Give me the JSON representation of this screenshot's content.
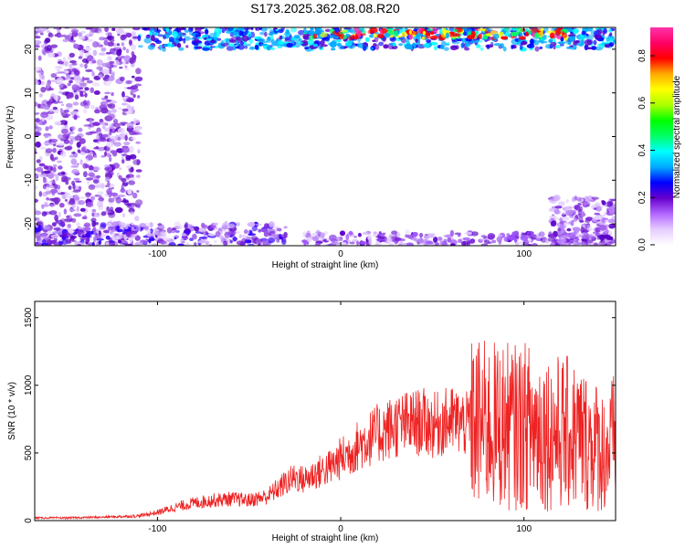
{
  "figure": {
    "title": "S173.2025.362.08.08.R20"
  },
  "chart_data": [
    {
      "type": "heatmap",
      "xlabel": "Height of straight line (km)",
      "ylabel": "Frequency (Hz)",
      "xlim": [
        -167,
        150
      ],
      "ylim": [
        -25,
        25
      ],
      "xticks": [
        -100,
        0,
        100
      ],
      "yticks": [
        -20,
        -10,
        0,
        10,
        20
      ],
      "grid": false,
      "colorscale": "rainbow (white-purple-blue-cyan-green-yellow-red-magenta)",
      "colorbar": {
        "label": "Normalized spectral amplitude",
        "ticks": [
          0.0,
          0.2,
          0.4,
          0.6,
          0.8
        ],
        "range": [
          0,
          0.92
        ],
        "colors": [
          "#ffffff",
          "#e6ccff",
          "#b266ff",
          "#6600cc",
          "#0000ff",
          "#00aaff",
          "#00ffff",
          "#00ff66",
          "#00ff00",
          "#aaff00",
          "#ffff00",
          "#ffaa00",
          "#ff0000",
          "#ff0066",
          "#ff33aa"
        ]
      },
      "regions": [
        {
          "x": [
            -167,
            -110
          ],
          "y": [
            -25,
            25
          ],
          "level": 0.08,
          "color": "#7b2cd0"
        },
        {
          "x": [
            -110,
            150
          ],
          "y": [
            20,
            25
          ],
          "level": 0.35,
          "color": "#00aaff"
        },
        {
          "x": [
            -20,
            125
          ],
          "y": [
            22.5,
            24.5
          ],
          "level": 0.85,
          "color": "#ff0000"
        },
        {
          "x": [
            -167,
            -30
          ],
          "y": [
            -25,
            -20
          ],
          "level": 0.15,
          "color": "#3300ff"
        },
        {
          "x": [
            -20,
            150
          ],
          "y": [
            -25,
            -22
          ],
          "level": 0.06,
          "color": "#9a4cff"
        },
        {
          "x": [
            115,
            150
          ],
          "y": [
            -25,
            -14
          ],
          "level": 0.05,
          "color": "#b97bff"
        }
      ]
    },
    {
      "type": "line",
      "xlabel": "Height of straight line (km)",
      "ylabel": "SNR (10 * v/v)",
      "xlim": [
        -167,
        150
      ],
      "ylim": [
        0,
        1620
      ],
      "xticks": [
        -100,
        0,
        100
      ],
      "yticks": [
        0,
        500,
        1000,
        1500
      ],
      "grid": false,
      "color": "#ee2222",
      "x": [
        -167,
        -150,
        -130,
        -110,
        -100,
        -90,
        -80,
        -70,
        -60,
        -50,
        -40,
        -35,
        -30,
        -25,
        -20,
        -15,
        -10,
        -5,
        0,
        5,
        10,
        15,
        20,
        25,
        30,
        35,
        40,
        45,
        50,
        55,
        60,
        65,
        70,
        75,
        80,
        85,
        90,
        95,
        100,
        105,
        110,
        115,
        120,
        125,
        130,
        135,
        140,
        145,
        150
      ],
      "y": [
        20,
        20,
        25,
        35,
        60,
        100,
        130,
        150,
        160,
        150,
        180,
        230,
        280,
        320,
        300,
        340,
        370,
        400,
        460,
        500,
        560,
        600,
        640,
        670,
        700,
        710,
        720,
        730,
        700,
        720,
        740,
        730,
        700,
        720,
        700,
        700,
        700,
        690,
        700,
        690,
        680,
        650,
        650,
        640,
        620,
        580,
        550,
        500,
        600
      ]
    }
  ]
}
